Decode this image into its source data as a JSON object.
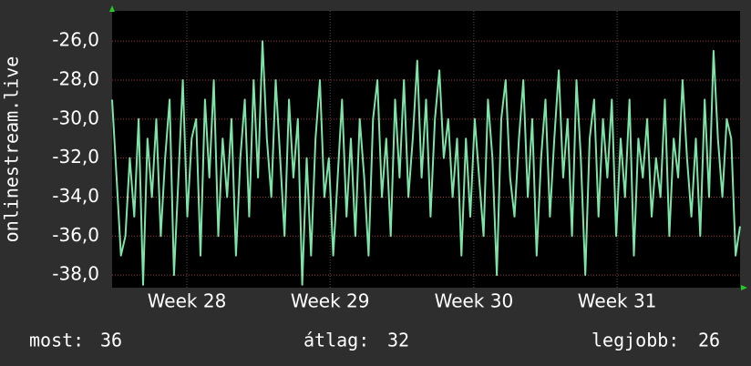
{
  "chart_data": {
    "type": "line",
    "y_label": "onlinestream.live",
    "series": [
      {
        "name": "onlinestream.live",
        "color": "#7de3a6",
        "values": [
          -29,
          -33,
          -37,
          -36,
          -32,
          -35,
          -30,
          -38.5,
          -31,
          -34,
          -30,
          -36,
          -32,
          -29,
          -38,
          -33,
          -28,
          -35,
          -31,
          -30,
          -37,
          -29,
          -33,
          -28,
          -36,
          -31,
          -34,
          -30,
          -37,
          -32,
          -29,
          -35,
          -28,
          -33,
          -26,
          -31,
          -34,
          -28,
          -32,
          -36,
          -29,
          -33,
          -30,
          -38.5,
          -32,
          -37,
          -31,
          -28,
          -34,
          -32,
          -37,
          -33,
          -29,
          -35,
          -31,
          -36,
          -30,
          -33,
          -37,
          -30,
          -28,
          -34,
          -31,
          -36,
          -29,
          -33,
          -28,
          -34,
          -31,
          -27,
          -33,
          -29,
          -35,
          -30,
          -27.5,
          -32,
          -30,
          -34,
          -31,
          -37,
          -31,
          -35,
          -30,
          -33,
          -36,
          -29,
          -32,
          -38,
          -30,
          -28,
          -33,
          -35,
          -31,
          -28,
          -34,
          -30,
          -37,
          -32,
          -29,
          -35,
          -31,
          -27.5,
          -33,
          -30,
          -36,
          -28,
          -32,
          -38,
          -31,
          -29,
          -35,
          -30,
          -33,
          -29,
          -36,
          -31,
          -34,
          -29,
          -37,
          -31,
          -33,
          -30,
          -35,
          -32,
          -34,
          -29,
          -36,
          -31,
          -33,
          -28,
          -32,
          -35,
          -31,
          -36,
          -29,
          -34,
          -26.5,
          -31,
          -34,
          -30,
          -31,
          -37,
          -35.5
        ]
      }
    ],
    "xlim": [
      0,
      142
    ],
    "xticks": [
      {
        "value": 16.9,
        "label": "Week 28"
      },
      {
        "value": 49.3,
        "label": "Week 29"
      },
      {
        "value": 81.8,
        "label": "Week 30"
      },
      {
        "value": 114.2,
        "label": "Week 31"
      }
    ],
    "ylim": [
      -38.65,
      -24.45
    ],
    "yticks": [
      {
        "value": -38,
        "label": "-38,0"
      },
      {
        "value": -36,
        "label": "-36,0"
      },
      {
        "value": -34,
        "label": "-34,0"
      },
      {
        "value": -32,
        "label": "-32,0"
      },
      {
        "value": -30,
        "label": "-30,0"
      },
      {
        "value": -28,
        "label": "-28,0"
      },
      {
        "value": -26,
        "label": "-26,0"
      }
    ],
    "grid": true,
    "summary": [
      {
        "label": "most:",
        "value": 36
      },
      {
        "label": "átlag:",
        "value": 32
      },
      {
        "label": "legjobb:",
        "value": 26
      }
    ]
  }
}
